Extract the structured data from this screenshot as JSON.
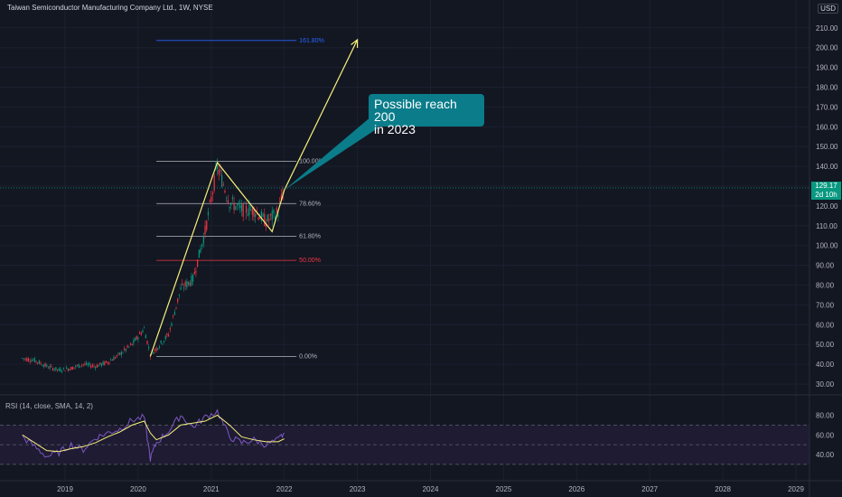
{
  "header": {
    "title": "Taiwan Semiconductor Manufacturing Company Ltd., 1W, NYSE",
    "currency": "USD"
  },
  "price_badge": {
    "price": "129.17",
    "countdown": "2d 10h"
  },
  "annotation": {
    "line1": "Possible reach 200",
    "line2": "in 2023"
  },
  "rsi_legend": "RSI (14, close, SMA, 14, 2)",
  "colors": {
    "background": "#131722",
    "candle_up": "#089981",
    "candle_down": "#f23645",
    "pattern": "#f7f17a",
    "rsi": "#7e57c2",
    "rsi_ma": "#f7f17a",
    "fib_161": "#2962ff",
    "fib_50": "#f23645",
    "fib_other": "#b2b5be",
    "callout": "#0a7c8a"
  },
  "chart_data": [
    {
      "type": "candlestick",
      "title": "Taiwan Semiconductor Manufacturing Company Ltd., 1W, NYSE",
      "x_ticks": [
        "2019",
        "2020",
        "2021",
        "2022",
        "2023",
        "2024",
        "2025",
        "2026",
        "2027",
        "2028",
        "2029"
      ],
      "y_ticks": [
        "30.00",
        "40.00",
        "50.00",
        "60.00",
        "70.00",
        "80.00",
        "90.00",
        "100.00",
        "110.00",
        "120.00",
        "130.00",
        "140.00",
        "150.00",
        "160.00",
        "170.00",
        "180.00",
        "190.00",
        "200.00",
        "210.00"
      ],
      "ylim": [
        25,
        215
      ],
      "x": [
        "2018-06",
        "2018-08",
        "2018-10",
        "2018-12",
        "2019-02",
        "2019-04",
        "2019-06",
        "2019-08",
        "2019-10",
        "2019-12",
        "2020-02",
        "2020-03",
        "2020-04",
        "2020-06",
        "2020-08",
        "2020-10",
        "2020-12",
        "2021-02",
        "2021-04",
        "2021-06",
        "2021-08",
        "2021-10",
        "2021-12",
        "2022-01"
      ],
      "close": [
        43,
        42,
        39,
        37,
        38,
        40,
        39,
        41,
        45,
        50,
        58,
        45,
        48,
        55,
        78,
        83,
        107,
        140,
        122,
        118,
        118,
        112,
        117,
        129.17
      ],
      "last_price": 129.17,
      "fib_retracement": [
        {
          "level": "0.00%",
          "price": 44
        },
        {
          "level": "50.00%",
          "price": 92.5
        },
        {
          "level": "61.80%",
          "price": 104.7
        },
        {
          "level": "78.60%",
          "price": 121.2
        },
        {
          "level": "100.00%",
          "price": 142.5
        },
        {
          "level": "161.80%",
          "price": 203.6
        }
      ],
      "pattern": [
        {
          "x": "2020-03",
          "y": 44
        },
        {
          "x": "2021-02",
          "y": 142
        },
        {
          "x": "2021-11",
          "y": 107
        },
        {
          "x": "2022-01",
          "y": 128
        },
        {
          "x": "2023-01",
          "y": 204
        }
      ]
    },
    {
      "type": "line",
      "title": "RSI (14, close, SMA, 14, 2)",
      "y_ticks": [
        "40.00",
        "60.00",
        "80.00"
      ],
      "ylim": [
        25,
        90
      ],
      "bands": [
        70,
        50,
        30
      ],
      "x": [
        "2018-06",
        "2018-08",
        "2018-10",
        "2018-12",
        "2019-02",
        "2019-04",
        "2019-06",
        "2019-08",
        "2019-10",
        "2019-12",
        "2020-02",
        "2020-03",
        "2020-04",
        "2020-06",
        "2020-08",
        "2020-10",
        "2020-12",
        "2021-02",
        "2021-04",
        "2021-06",
        "2021-08",
        "2021-10",
        "2021-12",
        "2022-01"
      ],
      "series": [
        {
          "values": [
            58,
            48,
            38,
            42,
            50,
            45,
            57,
            62,
            66,
            75,
            78,
            36,
            52,
            64,
            80,
            68,
            78,
            84,
            58,
            52,
            55,
            50,
            55,
            62
          ]
        },
        {
          "values": [
            60,
            52,
            44,
            43,
            46,
            48,
            52,
            58,
            63,
            70,
            74,
            62,
            55,
            60,
            70,
            72,
            74,
            80,
            70,
            58,
            55,
            53,
            53,
            56
          ]
        }
      ]
    }
  ]
}
